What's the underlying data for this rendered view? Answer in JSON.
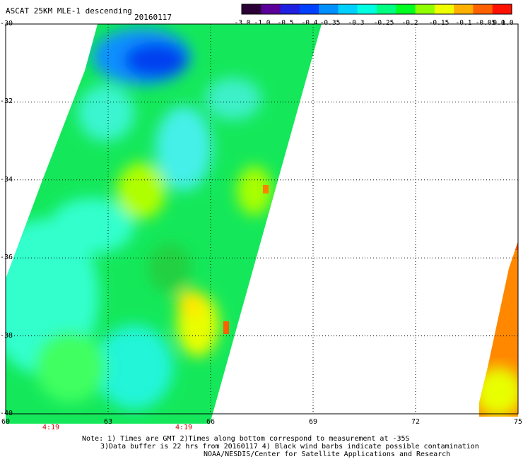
{
  "header": {
    "title": "ASCAT 25KM MLE-1 descending",
    "date": "20160117"
  },
  "colorbar": {
    "tick_labels": [
      "-3.0",
      "-1.0",
      "-0.5",
      "-0.4",
      "-0.35",
      "-0.3",
      "-0.25",
      "-0.2",
      "-0.15",
      "-0.1",
      "-0.05",
      "0.0",
      "1.0"
    ],
    "colors": [
      "#2a0036",
      "#5a0099",
      "#2020e0",
      "#0040ff",
      "#0090ff",
      "#00d0ff",
      "#00ffe0",
      "#00ff80",
      "#00ff20",
      "#90ff00",
      "#f0ff00",
      "#ffb000",
      "#ff6000",
      "#ff1000"
    ]
  },
  "axes": {
    "x_ticks": [
      "60",
      "63",
      "66",
      "69",
      "72",
      "75"
    ],
    "y_ticks": [
      "-30",
      "-32",
      "-34",
      "-36",
      "-38",
      "-40"
    ],
    "x_range": [
      60,
      75
    ],
    "y_range": [
      -40,
      -30
    ]
  },
  "times": [
    "4:19",
    "4:19"
  ],
  "notes": {
    "line1": "Note: 1) Times are GMT 2)Times along bottom correspond to measurement at -35S",
    "line2": "3)Data buffer is 22 hrs from 20160117 4) Black wind barbs indicate possible contamination",
    "line3": "NOAA/NESDIS/Center for Satellite Applications and Research"
  }
}
